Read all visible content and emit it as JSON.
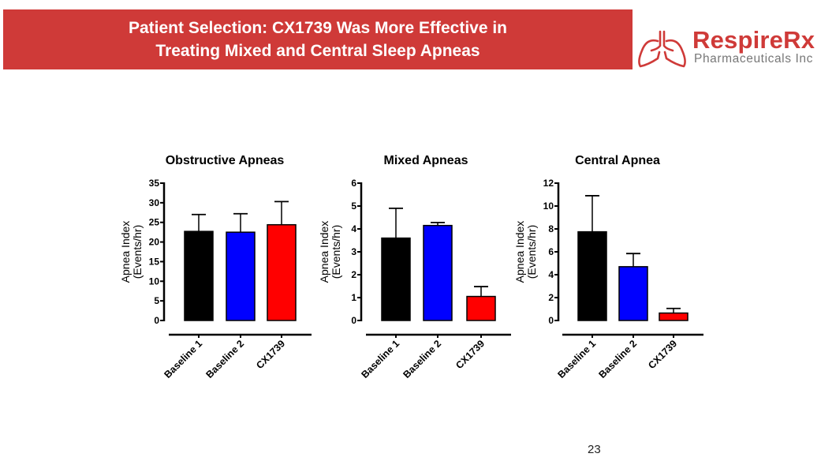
{
  "header": {
    "title_line1": "Patient Selection: CX1739 Was More Effective in",
    "title_line2": "Treating Mixed and Central Sleep Apneas",
    "bar_color": "#cf3a38"
  },
  "logo": {
    "name": "RespireRx",
    "subtitle": "Pharmaceuticals Inc",
    "icon": "lungs-icon",
    "color": "#cf3a38"
  },
  "page_number": "23",
  "chart_data": [
    {
      "type": "bar",
      "title": "Obstructive Apneas",
      "xlabel": "",
      "ylabel_line1": "Apnea Index",
      "ylabel_line2": "(Events/hr)",
      "categories": [
        "Baseline 1",
        "Baseline 2",
        "CX1739"
      ],
      "values": [
        22.7,
        22.5,
        24.4
      ],
      "error_upper": [
        27.0,
        27.2,
        30.3
      ],
      "colors": [
        "#000000",
        "#0000ff",
        "#ff0000"
      ],
      "ylim": [
        0,
        35
      ],
      "yticks": [
        0,
        5,
        10,
        15,
        20,
        25,
        30,
        35
      ],
      "grid": false
    },
    {
      "type": "bar",
      "title": "Mixed Apneas",
      "xlabel": "",
      "ylabel_line1": "Apnea Index",
      "ylabel_line2": "(Events/hr)",
      "categories": [
        "Baseline 1",
        "Baseline 2",
        "CX1739"
      ],
      "values": [
        3.6,
        4.15,
        1.05
      ],
      "error_upper": [
        4.9,
        4.28,
        1.48
      ],
      "colors": [
        "#000000",
        "#0000ff",
        "#ff0000"
      ],
      "ylim": [
        0,
        6
      ],
      "yticks": [
        0,
        1,
        2,
        3,
        4,
        5,
        6
      ],
      "grid": false
    },
    {
      "type": "bar",
      "title": "Central  Apnea",
      "xlabel": "",
      "ylabel_line1": "Apnea Index",
      "ylabel_line2": "(Events/hr)",
      "categories": [
        "Baseline 1",
        "Baseline 2",
        "CX1739"
      ],
      "values": [
        7.75,
        4.7,
        0.65
      ],
      "error_upper": [
        10.9,
        5.85,
        1.05
      ],
      "colors": [
        "#000000",
        "#0000ff",
        "#ff0000"
      ],
      "ylim": [
        0,
        12
      ],
      "yticks": [
        0,
        2,
        4,
        6,
        8,
        10,
        12
      ],
      "grid": false
    }
  ]
}
